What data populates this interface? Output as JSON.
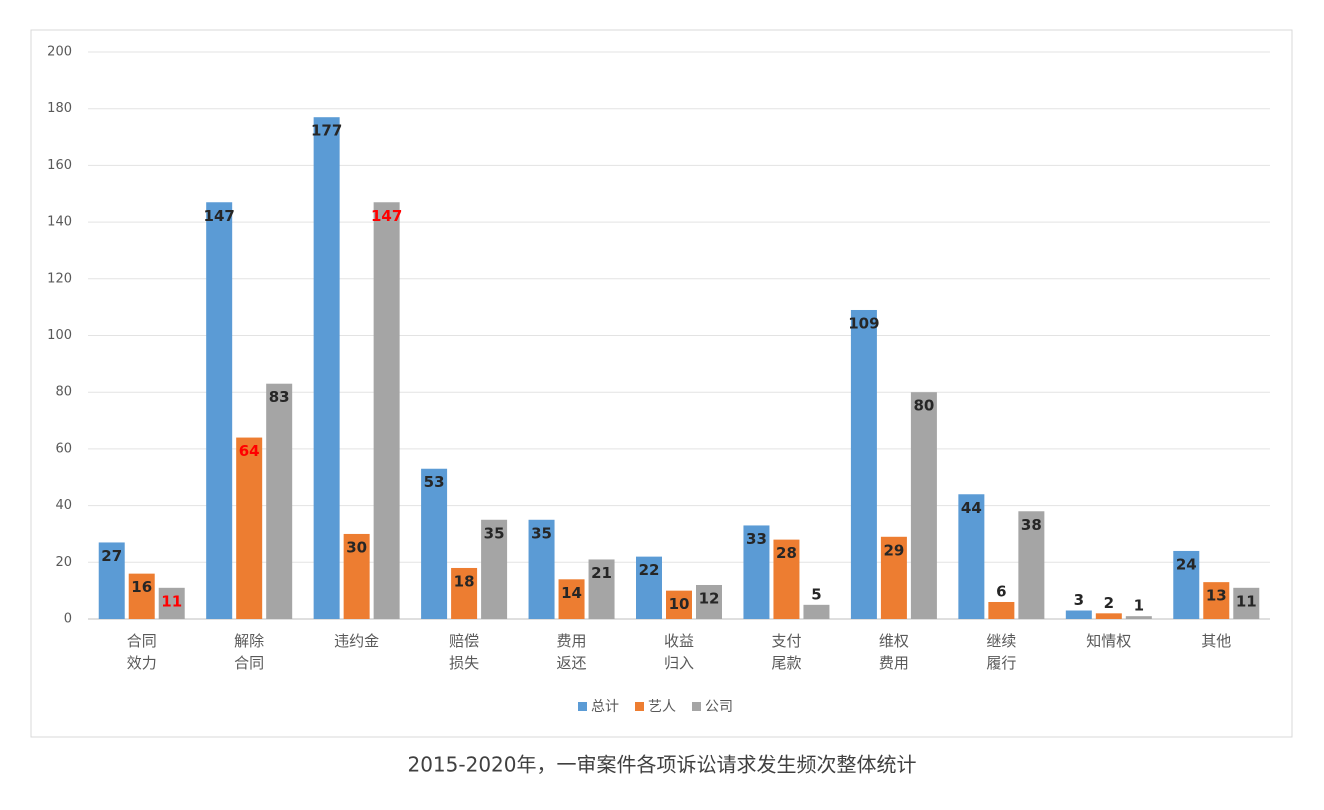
{
  "chart_data": {
    "type": "bar",
    "title": "2015-2020年，一审案件各项诉讼请求发生频次整体统计",
    "categories": [
      "合同\n效力",
      "解除\n合同",
      "违约金",
      "赔偿\n损失",
      "费用\n返还",
      "收益\n归入",
      "支付\n尾款",
      "维权\n费用",
      "继续\n履行",
      "知情权",
      "其他"
    ],
    "series": [
      {
        "name": "总计",
        "color": "#5b9bd5",
        "values": [
          27,
          147,
          177,
          53,
          35,
          22,
          33,
          109,
          44,
          3,
          24
        ]
      },
      {
        "name": "艺人",
        "color": "#ed7d31",
        "values": [
          16,
          64,
          30,
          18,
          14,
          10,
          28,
          29,
          6,
          2,
          13
        ]
      },
      {
        "name": "公司",
        "color": "#a5a5a5",
        "values": [
          11,
          83,
          147,
          35,
          21,
          12,
          5,
          80,
          38,
          1,
          11
        ]
      }
    ],
    "highlight": {
      "color": "#ff0000",
      "points": [
        [
          0,
          2
        ],
        [
          1,
          1
        ],
        [
          2,
          2
        ]
      ]
    },
    "ylim": [
      0,
      200
    ],
    "yticks": [
      0,
      20,
      40,
      60,
      80,
      100,
      120,
      140,
      160,
      180,
      200
    ],
    "grid": true,
    "legend": "bottom"
  }
}
